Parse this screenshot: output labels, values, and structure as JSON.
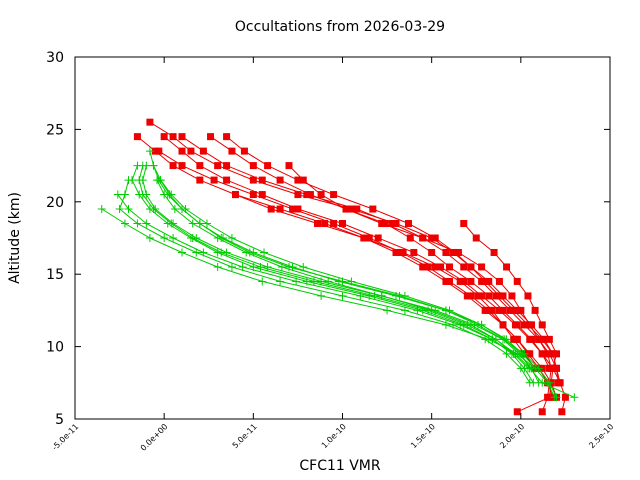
{
  "chart_data": {
    "type": "line",
    "title": "Occultations from 2026-03-29",
    "xlabel": "CFC11 VMR",
    "ylabel": "Altitude (km)",
    "xlim": [
      -5e-11,
      2.5e-10
    ],
    "ylim": [
      5,
      30
    ],
    "x_ticks": [
      {
        "value": -5e-11,
        "label": "-5.0e-11"
      },
      {
        "value": 0,
        "label": "0.0e+00"
      },
      {
        "value": 5e-11,
        "label": "5.0e-11"
      },
      {
        "value": 1e-10,
        "label": "1.0e-10"
      },
      {
        "value": 1.5e-10,
        "label": "1.5e-10"
      },
      {
        "value": 2e-10,
        "label": "2.0e-10"
      },
      {
        "value": 2.5e-10,
        "label": "2.5e-10"
      }
    ],
    "y_ticks": [
      {
        "value": 5,
        "label": "5"
      },
      {
        "value": 10,
        "label": "10"
      },
      {
        "value": 15,
        "label": "15"
      },
      {
        "value": 20,
        "label": "20"
      },
      {
        "value": 25,
        "label": "25"
      },
      {
        "value": 30,
        "label": "30"
      }
    ],
    "grid": false,
    "legend": "none",
    "colors": {
      "red_series": "#ee0000",
      "green_series": "#00cc00",
      "axis": "#000000"
    },
    "series": [
      {
        "name": "occultation-red-1",
        "color": "#ee0000",
        "marker": "square",
        "alt": [
          24.5,
          23.5,
          22.5,
          21.5,
          20.5,
          19.5,
          18.5,
          17.5,
          16.5,
          15.5,
          14.5,
          13.5,
          12.5,
          11.5,
          10.5,
          9.5,
          8.5,
          7.5,
          6.5
        ],
        "vmr": [
          -1.5e-11,
          -5e-12,
          5e-12,
          2e-11,
          4e-11,
          6.5e-11,
          9e-11,
          1.12e-10,
          1.3e-10,
          1.45e-10,
          1.58e-10,
          1.7e-10,
          1.8e-10,
          1.9e-10,
          1.98e-10,
          2.05e-10,
          2.12e-10,
          2.17e-10,
          2.2e-10
        ]
      },
      {
        "name": "occultation-red-2",
        "color": "#ee0000",
        "marker": "square",
        "alt": [
          24.5,
          23.5,
          22.5,
          21.5,
          20.5,
          19.5,
          18.5,
          17.5,
          16.5,
          15.5,
          14.5,
          13.5,
          12.5,
          11.5,
          10.5,
          9.5,
          8.5,
          7.5,
          6.5,
          5.5
        ],
        "vmr": [
          0,
          1e-11,
          2e-11,
          3.5e-11,
          5.5e-11,
          7.5e-11,
          1e-10,
          1.2e-10,
          1.4e-10,
          1.55e-10,
          1.68e-10,
          1.78e-10,
          1.88e-10,
          1.97e-10,
          2.05e-10,
          2.12e-10,
          2.18e-10,
          2.22e-10,
          2.25e-10,
          2.23e-10
        ]
      },
      {
        "name": "occultation-red-3",
        "color": "#ee0000",
        "marker": "square",
        "alt": [
          25.5,
          24.5,
          23.5,
          22.5,
          21.5,
          20.5,
          19.5,
          18.5,
          17.5,
          16.5,
          15.5,
          14.5,
          13.5,
          12.5,
          11.5,
          10.5,
          9.5,
          8.5,
          7.5
        ],
        "vmr": [
          -8e-12,
          5e-12,
          1.5e-11,
          3e-11,
          5e-11,
          7.5e-11,
          1.05e-10,
          1.3e-10,
          1.5e-10,
          1.62e-10,
          1.72e-10,
          1.82e-10,
          1.9e-10,
          1.98e-10,
          2.06e-10,
          2.13e-10,
          2.18e-10,
          2.2e-10,
          2.22e-10
        ]
      },
      {
        "name": "occultation-red-4",
        "color": "#ee0000",
        "marker": "square",
        "alt": [
          23.5,
          22.5,
          21.5,
          20.5,
          19.5,
          18.5,
          17.5,
          16.5,
          15.5,
          14.5,
          13.5,
          12.5,
          11.5,
          10.5,
          9.5,
          8.5,
          7.5,
          6.5
        ],
        "vmr": [
          -3e-12,
          1e-11,
          2.8e-11,
          5e-11,
          7.2e-11,
          9.5e-11,
          1.15e-10,
          1.33e-10,
          1.48e-10,
          1.6e-10,
          1.72e-10,
          1.82e-10,
          1.9e-10,
          1.98e-10,
          2.04e-10,
          2.1e-10,
          2.15e-10,
          2.18e-10
        ]
      },
      {
        "name": "occultation-red-5",
        "color": "#ee0000",
        "marker": "square",
        "alt": [
          24.5,
          23.5,
          22.5,
          21.5,
          20.5,
          19.5,
          18.5,
          17.5,
          16.5,
          15.5,
          14.5,
          13.5,
          12.5,
          11.5,
          10.5,
          9.5,
          8.5,
          7.5
        ],
        "vmr": [
          1e-11,
          2.2e-11,
          3.5e-11,
          5.5e-11,
          8e-11,
          1.08e-10,
          1.28e-10,
          1.45e-10,
          1.58e-10,
          1.68e-10,
          1.78e-10,
          1.86e-10,
          1.94e-10,
          2.02e-10,
          2.1e-10,
          2.16e-10,
          2.2e-10,
          2.21e-10
        ]
      },
      {
        "name": "occultation-red-6",
        "color": "#ee0000",
        "marker": "square",
        "alt": [
          24.5,
          23.5,
          22.5,
          21.5,
          20.5,
          19.5,
          18.5,
          17.5,
          16.5,
          15.5,
          14.5,
          13.5,
          12.5,
          11.5,
          10.5,
          9.5,
          8.5
        ],
        "vmr": [
          2.6e-11,
          3.8e-11,
          5e-11,
          6.5e-11,
          8.2e-11,
          1.02e-10,
          1.24e-10,
          1.38e-10,
          1.5e-10,
          1.6e-10,
          1.72e-10,
          1.82e-10,
          1.9e-10,
          1.98e-10,
          2.06e-10,
          2.12e-10,
          2.16e-10
        ]
      },
      {
        "name": "occultation-red-7",
        "color": "#ee0000",
        "marker": "square",
        "alt": [
          24.5,
          23.5,
          22.5,
          21.5,
          20.5,
          19.5,
          18.5,
          17.5,
          16.5,
          15.5,
          14.5,
          13.5,
          12.5,
          11.5,
          10.5,
          9.5
        ],
        "vmr": [
          3.5e-11,
          4.5e-11,
          5.8e-11,
          7.5e-11,
          9.5e-11,
          1.17e-10,
          1.37e-10,
          1.52e-10,
          1.63e-10,
          1.72e-10,
          1.8e-10,
          1.88e-10,
          1.96e-10,
          2.04e-10,
          2.12e-10,
          2.18e-10
        ]
      },
      {
        "name": "occultation-red-8",
        "color": "#ee0000",
        "marker": "square",
        "alt": [
          22.5,
          21.5,
          20.5,
          19.5,
          18.5,
          17.5,
          16.5,
          15.5,
          14.5,
          13.5,
          12.5,
          11.5,
          10.5,
          9.5,
          8.5,
          7.5,
          6.5,
          5.5
        ],
        "vmr": [
          7e-11,
          7.8e-11,
          8.8e-11,
          1.02e-10,
          1.22e-10,
          1.45e-10,
          1.65e-10,
          1.78e-10,
          1.88e-10,
          1.95e-10,
          2e-10,
          2.05e-10,
          2.1e-10,
          2.15e-10,
          2.17e-10,
          2.16e-10,
          2.15e-10,
          2.12e-10
        ]
      },
      {
        "name": "occultation-red-9",
        "color": "#ee0000",
        "marker": "square",
        "alt": [
          18.5,
          17.5,
          16.5,
          15.5,
          14.5,
          13.5,
          12.5,
          11.5,
          10.5,
          9.5,
          8.5,
          7.5,
          6.5,
          5.5
        ],
        "vmr": [
          1.68e-10,
          1.75e-10,
          1.85e-10,
          1.92e-10,
          1.98e-10,
          2.04e-10,
          2.08e-10,
          2.12e-10,
          2.16e-10,
          2.2e-10,
          2.18e-10,
          2.17e-10,
          2.16e-10,
          1.98e-10
        ]
      },
      {
        "name": "occultation-red-10",
        "color": "#ee0000",
        "marker": "square",
        "alt": [
          20.5,
          19.5,
          18.5,
          17.5,
          16.5,
          15.5,
          14.5,
          13.5,
          12.5,
          11.5,
          10.5,
          9.5,
          8.5
        ],
        "vmr": [
          4e-11,
          6e-11,
          8.6e-11,
          1.12e-10,
          1.34e-10,
          1.52e-10,
          1.66e-10,
          1.76e-10,
          1.84e-10,
          1.9e-10,
          1.96e-10,
          2.02e-10,
          2.08e-10
        ]
      },
      {
        "name": "occultation-green-1",
        "color": "#00cc00",
        "marker": "plus",
        "alt": [
          23.5,
          22.5,
          21.5,
          20.5,
          19.5,
          18.5,
          17.5,
          16.5,
          15.5,
          14.5,
          13.5,
          12.5,
          11.5,
          10.5,
          9.5,
          8.5,
          7.5
        ],
        "vmr": [
          -8e-12,
          -6e-12,
          -3e-12,
          2e-12,
          1e-11,
          2e-11,
          3.2e-11,
          4.8e-11,
          7e-11,
          1e-10,
          1.32e-10,
          1.58e-10,
          1.76e-10,
          1.9e-10,
          1.99e-10,
          2.06e-10,
          2.1e-10
        ]
      },
      {
        "name": "occultation-green-2",
        "color": "#00cc00",
        "marker": "plus",
        "alt": [
          22.5,
          21.5,
          20.5,
          19.5,
          18.5,
          17.5,
          16.5,
          15.5,
          14.5,
          13.5,
          12.5,
          11.5,
          10.5,
          9.5,
          8.5,
          7.5
        ],
        "vmr": [
          -1.5e-11,
          -1.8e-11,
          -1.4e-11,
          -8e-12,
          2e-12,
          1.5e-11,
          3e-11,
          5e-11,
          8e-11,
          1.15e-10,
          1.45e-10,
          1.68e-10,
          1.84e-10,
          1.95e-10,
          2.02e-10,
          2.07e-10
        ]
      },
      {
        "name": "occultation-green-3",
        "color": "#00cc00",
        "marker": "plus",
        "alt": [
          22.5,
          21.5,
          20.5,
          19.5,
          18.5,
          17.5,
          16.5,
          15.5,
          14.5,
          13.5,
          12.5,
          11.5,
          10.5,
          9.5,
          8.5,
          7.5,
          6.5
        ],
        "vmr": [
          -1e-11,
          -1.2e-11,
          -1e-11,
          -5e-12,
          5e-12,
          1.8e-11,
          3.5e-11,
          5.8e-11,
          8.8e-11,
          1.22e-10,
          1.52e-10,
          1.74e-10,
          1.9e-10,
          2.02e-10,
          2.1e-10,
          2.16e-10,
          2.2e-10
        ]
      },
      {
        "name": "occultation-green-4",
        "color": "#00cc00",
        "marker": "plus",
        "alt": [
          21.5,
          20.5,
          19.5,
          18.5,
          17.5,
          16.5,
          15.5,
          14.5,
          13.5,
          12.5,
          11.5,
          10.5,
          9.5,
          8.5,
          7.5
        ],
        "vmr": [
          -2e-11,
          -2.2e-11,
          -2.5e-11,
          -1.5e-11,
          0,
          1.8e-11,
          3.8e-11,
          6.5e-11,
          1e-10,
          1.35e-10,
          1.62e-10,
          1.8e-10,
          1.92e-10,
          2e-10,
          2.05e-10
        ]
      },
      {
        "name": "occultation-green-5",
        "color": "#00cc00",
        "marker": "plus",
        "alt": [
          22.5,
          21.5,
          20.5,
          19.5,
          18.5,
          17.5,
          16.5,
          15.5,
          14.5,
          13.5,
          12.5,
          11.5,
          10.5,
          9.5,
          8.5
        ],
        "vmr": [
          -6e-12,
          -2e-12,
          3e-12,
          1e-11,
          2e-11,
          3.3e-11,
          5e-11,
          7.2e-11,
          9.8e-11,
          1.3e-10,
          1.58e-10,
          1.78e-10,
          1.91e-10,
          2e-10,
          2.05e-10
        ]
      },
      {
        "name": "occultation-green-6",
        "color": "#00cc00",
        "marker": "plus",
        "alt": [
          19.5,
          18.5,
          17.5,
          16.5,
          15.5,
          14.5,
          13.5,
          12.5,
          11.5,
          10.5,
          9.5,
          8.5,
          7.5,
          6.5
        ],
        "vmr": [
          -3.5e-11,
          -2.2e-11,
          -8e-12,
          1e-11,
          3e-11,
          5.5e-11,
          8.8e-11,
          1.25e-10,
          1.58e-10,
          1.82e-10,
          1.98e-10,
          2.08e-10,
          2.15e-10,
          2.19e-10
        ]
      },
      {
        "name": "occultation-green-7",
        "color": "#00cc00",
        "marker": "plus",
        "alt": [
          21.5,
          20.5,
          19.5,
          18.5,
          17.5,
          16.5,
          15.5,
          14.5,
          13.5,
          12.5,
          11.5,
          10.5,
          9.5
        ],
        "vmr": [
          -4e-12,
          0,
          6e-12,
          1.6e-11,
          3e-11,
          4.6e-11,
          6.6e-11,
          9.2e-11,
          1.22e-10,
          1.5e-10,
          1.72e-10,
          1.86e-10,
          1.96e-10
        ]
      },
      {
        "name": "occultation-green-8",
        "color": "#00cc00",
        "marker": "plus",
        "alt": [
          22.5,
          21.5,
          20.5,
          19.5,
          18.5,
          17.5,
          16.5,
          15.5,
          14.5,
          13.5,
          12.5,
          11.5,
          10.5,
          9.5,
          8.5,
          7.5,
          6.5
        ],
        "vmr": [
          -1.2e-11,
          -1.4e-11,
          -1.2e-11,
          -6e-12,
          4e-12,
          1.6e-11,
          3.2e-11,
          5.4e-11,
          8.4e-11,
          1.18e-10,
          1.48e-10,
          1.7e-10,
          1.86e-10,
          1.97e-10,
          2.05e-10,
          2.12e-10,
          2.3e-10
        ]
      },
      {
        "name": "occultation-green-9",
        "color": "#00cc00",
        "marker": "plus",
        "alt": [
          20.5,
          19.5,
          18.5,
          17.5,
          16.5,
          15.5,
          14.5,
          13.5,
          12.5,
          11.5,
          10.5,
          9.5,
          8.5
        ],
        "vmr": [
          -2.6e-11,
          -2e-11,
          -1e-11,
          5e-12,
          2.2e-11,
          4.4e-11,
          7.4e-11,
          1.1e-10,
          1.42e-10,
          1.66e-10,
          1.84e-10,
          1.96e-10,
          2.04e-10
        ]
      },
      {
        "name": "occultation-green-10",
        "color": "#00cc00",
        "marker": "plus",
        "alt": [
          21.5,
          20.5,
          19.5,
          18.5,
          17.5,
          16.5,
          15.5,
          14.5,
          13.5,
          12.5,
          11.5,
          10.5,
          9.5,
          8.5
        ],
        "vmr": [
          -2e-12,
          4e-12,
          1.2e-11,
          2.4e-11,
          3.8e-11,
          5.6e-11,
          7.8e-11,
          1.05e-10,
          1.35e-10,
          1.6e-10,
          1.78e-10,
          1.92e-10,
          2.01e-10,
          2.08e-10
        ]
      }
    ]
  }
}
